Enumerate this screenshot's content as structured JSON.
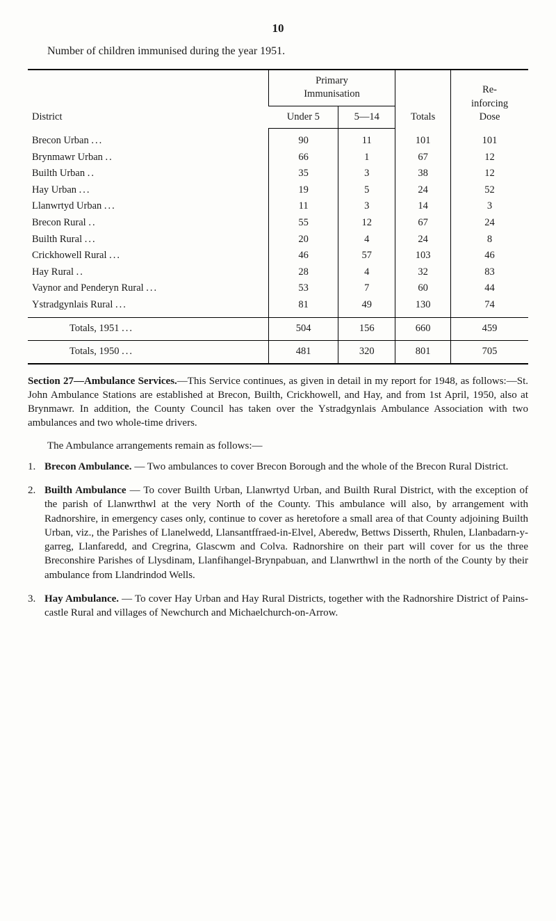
{
  "page_number": "10",
  "lead": "Number of children immunised during the year 1951.",
  "table": {
    "headers": {
      "district": "District",
      "primary": "Primary\nImmunisation",
      "under5": "Under 5",
      "five_to_14": "5—14",
      "totals": "Totals",
      "reinforcing": "Re-\ninforcing\nDose"
    },
    "rows": [
      {
        "district": "Brecon Urban",
        "dots": "...",
        "u5": "90",
        "f14": "11",
        "tot": "101",
        "re": "101"
      },
      {
        "district": "Brynmawr Urban",
        "dots": "..",
        "u5": "66",
        "f14": "1",
        "tot": "67",
        "re": "12"
      },
      {
        "district": "Builth Urban",
        "dots": "..",
        "u5": "35",
        "f14": "3",
        "tot": "38",
        "re": "12"
      },
      {
        "district": "Hay Urban",
        "dots": "...",
        "u5": "19",
        "f14": "5",
        "tot": "24",
        "re": "52"
      },
      {
        "district": "Llanwrtyd Urban",
        "dots": "...",
        "u5": "11",
        "f14": "3",
        "tot": "14",
        "re": "3"
      },
      {
        "district": "Brecon Rural",
        "dots": "..",
        "u5": "55",
        "f14": "12",
        "tot": "67",
        "re": "24"
      },
      {
        "district": "Builth Rural",
        "dots": "...",
        "u5": "20",
        "f14": "4",
        "tot": "24",
        "re": "8"
      },
      {
        "district": "Crickhowell Rural",
        "dots": "...",
        "u5": "46",
        "f14": "57",
        "tot": "103",
        "re": "46"
      },
      {
        "district": "Hay Rural",
        "dots": "..",
        "u5": "28",
        "f14": "4",
        "tot": "32",
        "re": "83"
      },
      {
        "district": "Vaynor and Penderyn Rural",
        "dots": "...",
        "u5": "53",
        "f14": "7",
        "tot": "60",
        "re": "44"
      },
      {
        "district": "Ystradgynlais Rural",
        "dots": "...",
        "u5": "81",
        "f14": "49",
        "tot": "130",
        "re": "74"
      }
    ],
    "footer": [
      {
        "label": "Totals, 1951",
        "dots": "...",
        "u5": "504",
        "f14": "156",
        "tot": "660",
        "re": "459"
      },
      {
        "label": "Totals, 1950",
        "dots": "...",
        "u5": "481",
        "f14": "320",
        "tot": "801",
        "re": "705"
      }
    ]
  },
  "section27": {
    "title": "Section 27—Ambulance Services.",
    "body": "—This Service continues, as given in detail in my report for 1948, as follows:—St. John Ambulance Stations are established at Brecon, Builth, Crick­howell, and Hay, and from 1st April, 1950, also at Brynmawr. In addition, the County Council has taken over the Ystradgynlais Ambulance Association with two ambulances and two whole-time drivers."
  },
  "para_remain": "The Ambulance arrangements remain as follows:—",
  "list": [
    {
      "num": "1.",
      "title": "Brecon Ambulance.",
      "body": " — Two ambulances to cover Brecon Borough and the whole of the Brecon Rural District."
    },
    {
      "num": "2.",
      "title": "Builth Ambulance",
      "body": " — To cover Builth Urban, Llanwrtyd Urban, and Builth Rural District, with the exception of the parish of Llanwrthwl at the very North of the County. This ambulance will also, by arrangement with Radnorshire, in emergency cases only, continue to cover as heretofore a small area of that County adjoining Builth Urban, viz., the Parishes of Llanelwedd, Llansantffraed-in-Elvel, Aberedw, Bettws Disserth, Rhulen, Llanbadarn-y-garreg, Llanfaredd, and Cregrina, Glascwm and Colva. Radnorshire on their part will cover for us the three Breconshire Parishes of Llysdinam, Llanfihangel-Brynpabuan, and Llanwrthwl in the north of the County by their ambulance from Llandrin­dod Wells."
    },
    {
      "num": "3.",
      "title": "Hay Ambulance.",
      "body": " — To cover Hay Urban and Hay Rural Districts, together with the Radnorshire District of Pains­castle Rural and villages of Newchurch and Michaelchurch-on-Arrow."
    }
  ]
}
